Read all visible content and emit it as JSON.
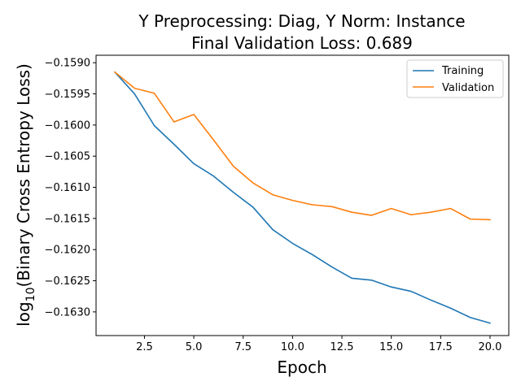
{
  "chart_data": {
    "type": "line",
    "title_line1": "Y Preprocessing: Diag, Y Norm: Instance",
    "title_line2": "Final Validation Loss: 0.689",
    "xlabel": "Epoch",
    "ylabel_prefix": "log",
    "ylabel_subscript": "10",
    "ylabel_suffix": "(Binary Cross Entropy Loss)",
    "xlim": [
      0.05,
      20.95
    ],
    "ylim": [
      -0.16338,
      -0.15888
    ],
    "xticks": [
      2.5,
      5.0,
      7.5,
      10.0,
      12.5,
      15.0,
      17.5,
      20.0
    ],
    "xtick_labels": [
      "2.5",
      "5.0",
      "7.5",
      "10.0",
      "12.5",
      "15.0",
      "17.5",
      "20.0"
    ],
    "yticks": [
      -0.159,
      -0.1595,
      -0.16,
      -0.1605,
      -0.161,
      -0.1615,
      -0.162,
      -0.1625,
      -0.163
    ],
    "ytick_labels": [
      "−0.1590",
      "−0.1595",
      "−0.1600",
      "−0.1605",
      "−0.1610",
      "−0.1615",
      "−0.1620",
      "−0.1625",
      "−0.1630"
    ],
    "x": [
      1,
      2,
      3,
      4,
      5,
      6,
      7,
      8,
      9,
      10,
      11,
      12,
      13,
      14,
      15,
      16,
      17,
      18,
      19,
      20
    ],
    "legend_position": "upper-right",
    "grid": false,
    "series": [
      {
        "name": "Training",
        "color": "#1f77b4",
        "values": [
          -0.15915,
          -0.1595,
          -0.16001,
          -0.16031,
          -0.16062,
          -0.16082,
          -0.16108,
          -0.16132,
          -0.16168,
          -0.1619,
          -0.16208,
          -0.16228,
          -0.16246,
          -0.16249,
          -0.1626,
          -0.16267,
          -0.16281,
          -0.16294,
          -0.16309,
          -0.16318
        ]
      },
      {
        "name": "Validation",
        "color": "#ff7f0e",
        "values": [
          -0.15915,
          -0.15941,
          -0.15949,
          -0.15995,
          -0.15983,
          -0.16024,
          -0.16066,
          -0.16093,
          -0.16112,
          -0.16121,
          -0.16128,
          -0.16131,
          -0.1614,
          -0.16145,
          -0.16134,
          -0.16144,
          -0.1614,
          -0.16134,
          -0.16151,
          -0.16152
        ]
      }
    ]
  }
}
